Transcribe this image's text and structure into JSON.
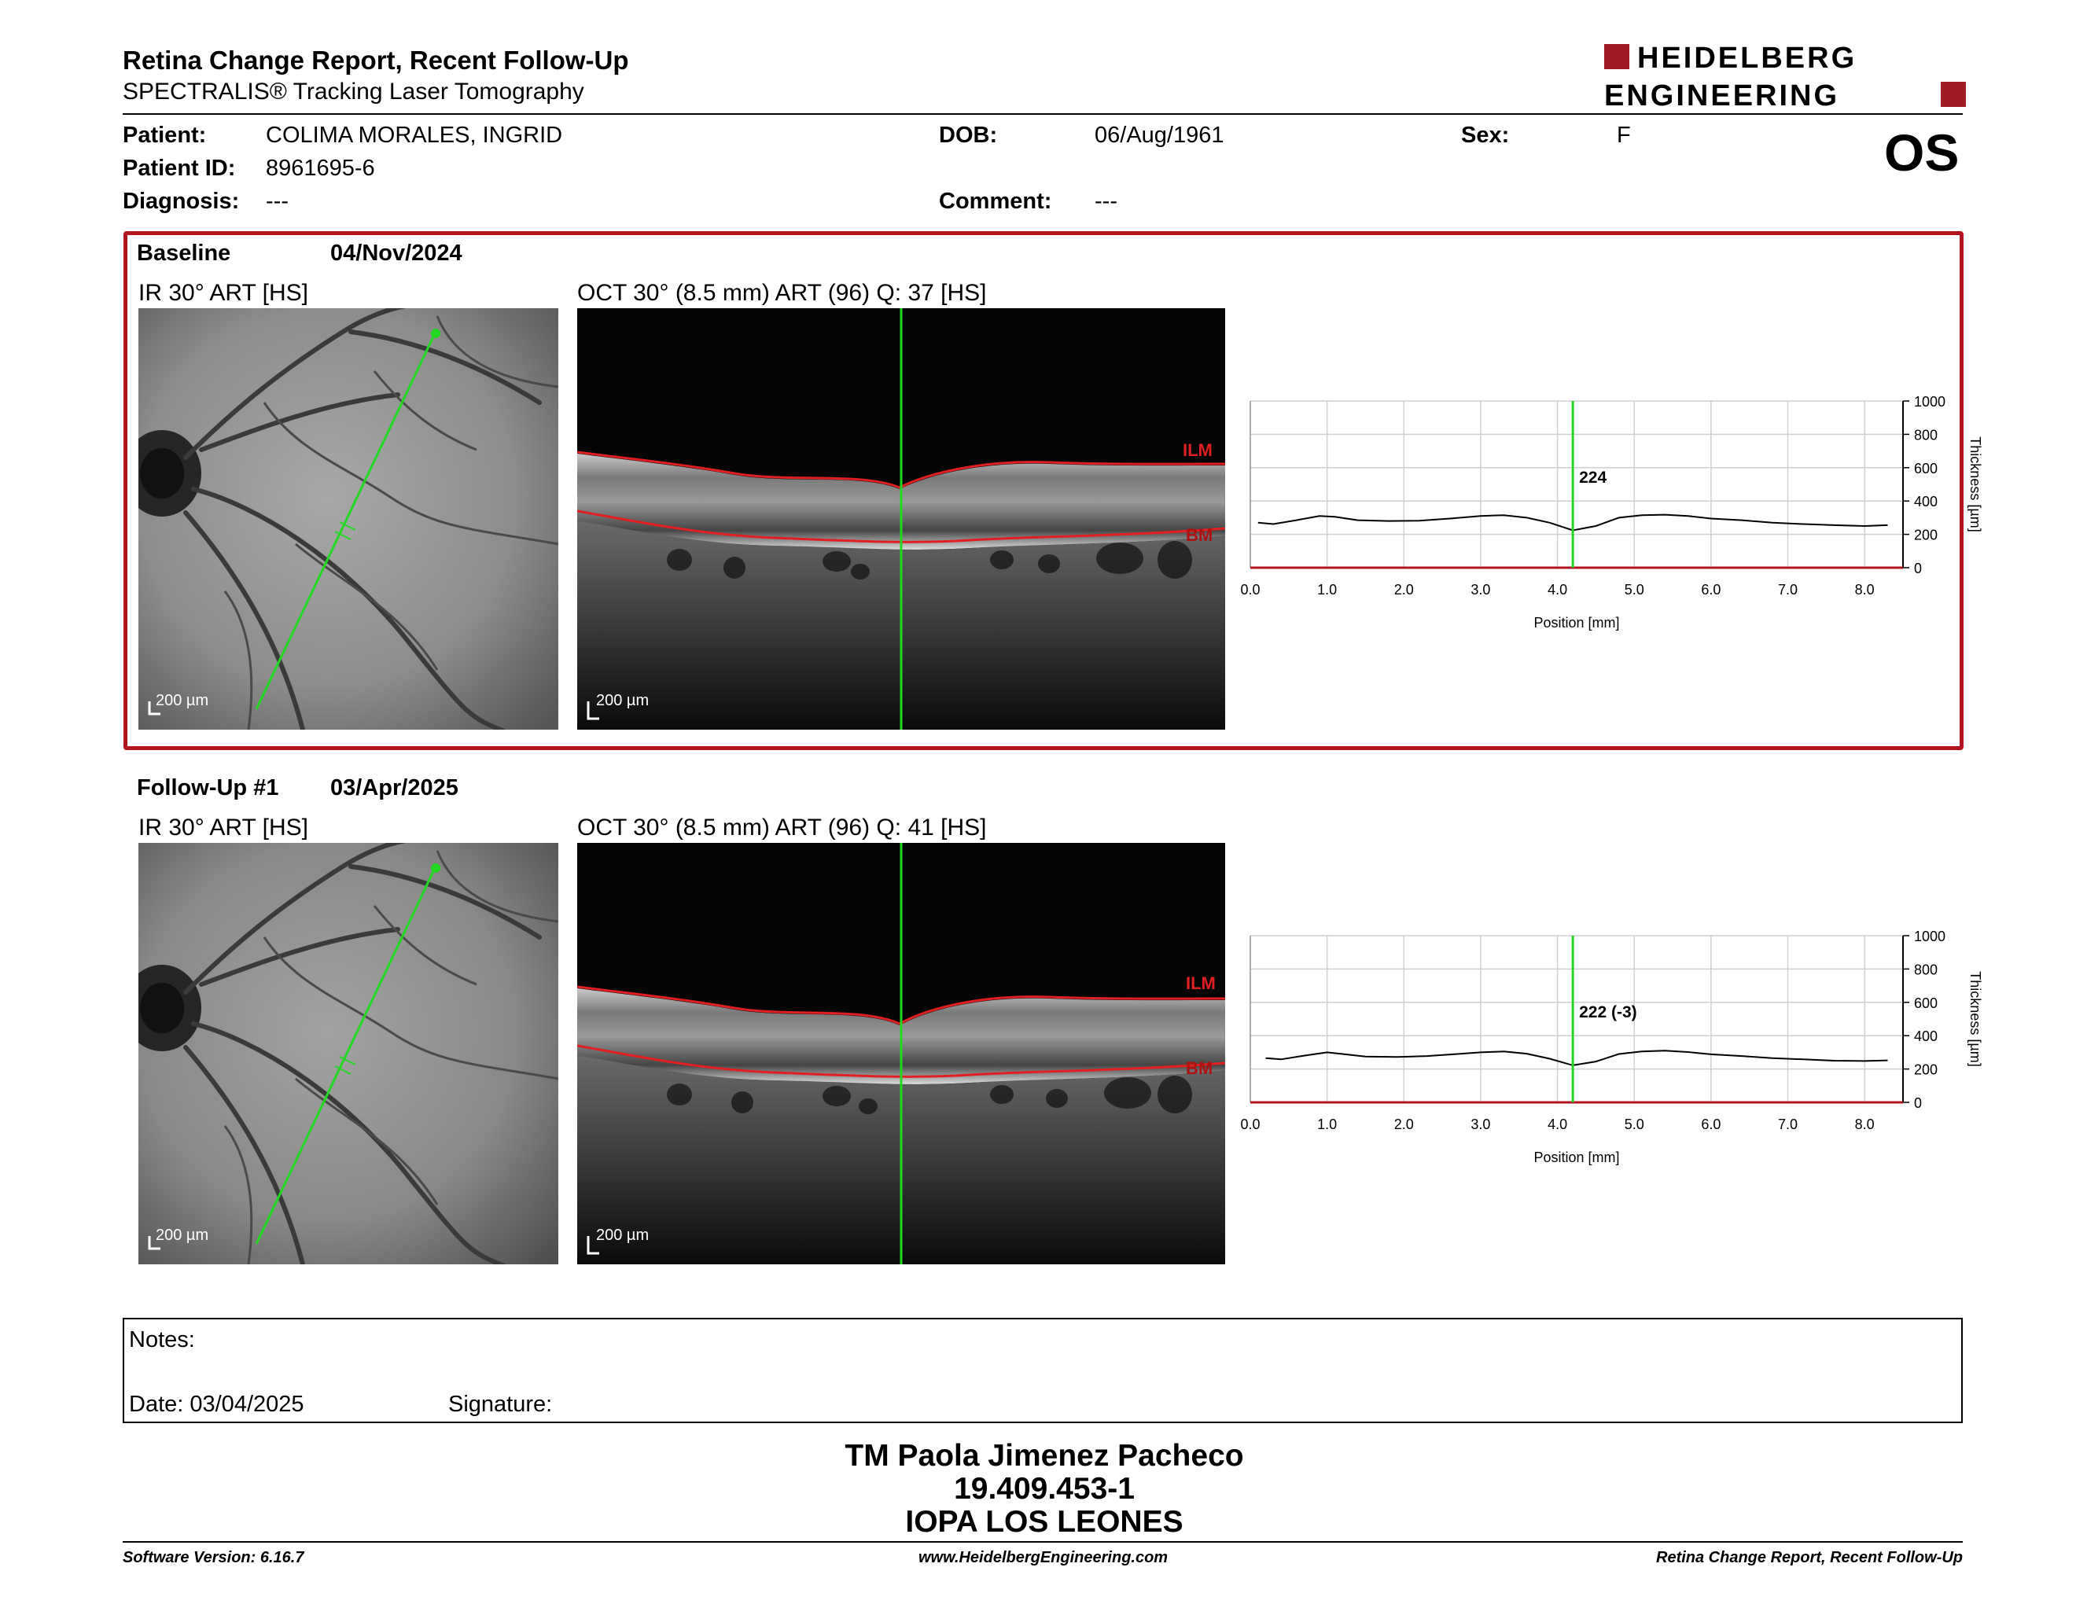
{
  "header": {
    "title": "Retina Change Report, Recent Follow-Up",
    "subtitle": "SPECTRALIS® Tracking Laser Tomography",
    "logo_line1": "HEIDELBERG",
    "logo_line2": "ENGINEERING",
    "eye": "OS"
  },
  "patient": {
    "patient_label": "Patient:",
    "patient_value": "COLIMA MORALES, INGRID",
    "id_label": "Patient ID:",
    "id_value": "8961695-6",
    "diagnosis_label": "Diagnosis:",
    "diagnosis_value": "---",
    "dob_label": "DOB:",
    "dob_value": "06/Aug/1961",
    "comment_label": "Comment:",
    "comment_value": "---",
    "sex_label": "Sex:",
    "sex_value": "F"
  },
  "baseline": {
    "label": "Baseline",
    "date": "04/Nov/2024",
    "ir_caption": "IR 30° ART [HS]",
    "oct_caption": "OCT 30° (8.5 mm) ART (96) Q: 37 [HS]",
    "ilm": "ILM",
    "bm": "BM",
    "scale": "200 µm"
  },
  "followup": {
    "label": "Follow-Up #1",
    "date": "03/Apr/2025",
    "ir_caption": "IR 30° ART [HS]",
    "oct_caption": "OCT 30° (8.5 mm) ART (96) Q: 41 [HS]",
    "ilm": "ILM",
    "bm": "BM",
    "scale": "200 µm"
  },
  "chart_data": [
    {
      "type": "line",
      "xlabel": "Position [mm]",
      "ylabel": "Thickness [µm]",
      "xlim": [
        0,
        8.5
      ],
      "ylim": [
        0,
        1000
      ],
      "x_ticks": [
        "0.0",
        "1.0",
        "2.0",
        "3.0",
        "4.0",
        "5.0",
        "6.0",
        "7.0",
        "8.0"
      ],
      "y_ticks": [
        "0",
        "200",
        "400",
        "600",
        "800",
        "1000"
      ],
      "cursor_x": 4.2,
      "cursor_label": "224",
      "grid": true,
      "x": [
        0.1,
        0.3,
        0.6,
        0.9,
        1.1,
        1.4,
        1.8,
        2.2,
        2.6,
        3.0,
        3.3,
        3.6,
        3.9,
        4.2,
        4.5,
        4.8,
        5.1,
        5.4,
        5.7,
        6.0,
        6.4,
        6.8,
        7.2,
        7.6,
        8.0,
        8.3
      ],
      "y": [
        270,
        262,
        285,
        310,
        305,
        285,
        280,
        282,
        295,
        310,
        315,
        300,
        270,
        224,
        250,
        300,
        315,
        318,
        310,
        295,
        285,
        270,
        262,
        255,
        250,
        255
      ]
    },
    {
      "type": "line",
      "xlabel": "Position [mm]",
      "ylabel": "Thickness [µm]",
      "xlim": [
        0,
        8.5
      ],
      "ylim": [
        0,
        1000
      ],
      "x_ticks": [
        "0.0",
        "1.0",
        "2.0",
        "3.0",
        "4.0",
        "5.0",
        "6.0",
        "7.0",
        "8.0"
      ],
      "y_ticks": [
        "0",
        "200",
        "400",
        "600",
        "800",
        "1000"
      ],
      "cursor_x": 4.2,
      "cursor_label": "222 (-3)",
      "grid": true,
      "x": [
        0.2,
        0.4,
        0.7,
        1.0,
        1.2,
        1.5,
        1.9,
        2.3,
        2.7,
        3.0,
        3.3,
        3.6,
        3.9,
        4.2,
        4.5,
        4.8,
        5.1,
        5.4,
        5.7,
        6.0,
        6.4,
        6.8,
        7.2,
        7.6,
        8.0,
        8.3
      ],
      "y": [
        265,
        258,
        280,
        300,
        290,
        275,
        272,
        278,
        290,
        300,
        305,
        292,
        262,
        222,
        245,
        290,
        305,
        310,
        302,
        288,
        278,
        265,
        258,
        250,
        248,
        252
      ]
    }
  ],
  "notes": {
    "notes_label": "Notes:",
    "date_label": "Date: 03/04/2025",
    "signature_label": "Signature:"
  },
  "signatory": {
    "name": "TM Paola Jimenez Pacheco",
    "rut": "19.409.453-1",
    "institution": "IOPA LOS LEONES"
  },
  "footer": {
    "software": "Software Version: 6.16.7",
    "website": "www.HeidelbergEngineering.com",
    "report": "Retina Change Report, Recent Follow-Up"
  },
  "colors": {
    "brand_red": "#b0141e",
    "scan_green": "#22d822",
    "layer_red": "#e02020"
  }
}
